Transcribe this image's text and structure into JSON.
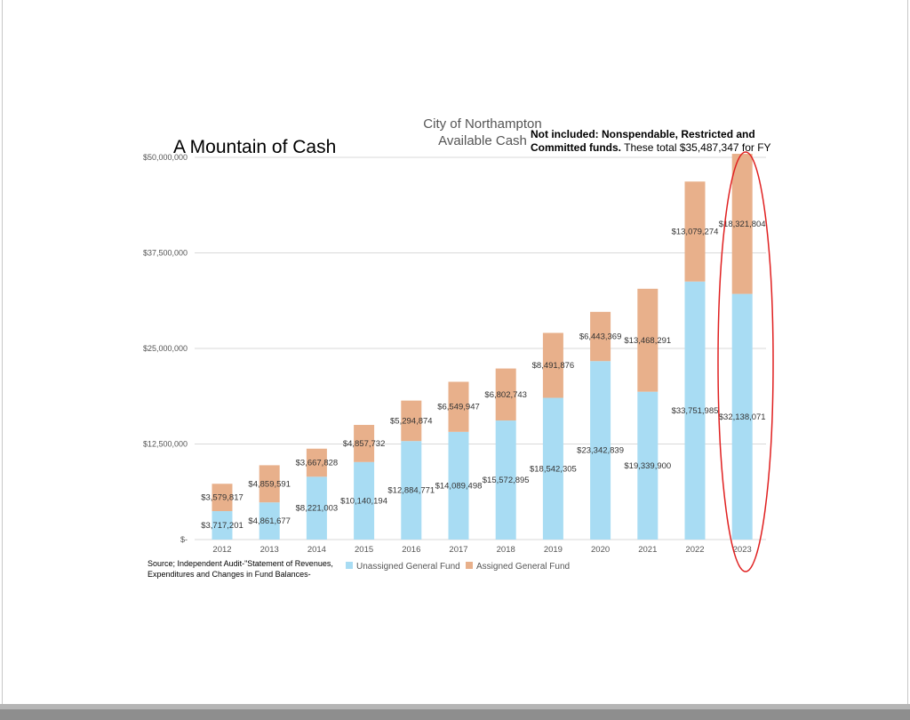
{
  "chart_data": {
    "type": "bar",
    "stacked": true,
    "title": "A Mountain of Cash",
    "subtitle_line1": "City of Northampton",
    "subtitle_line2": "Available Cash",
    "annotation_bold": "Not included: Nonspendable, Restricted and Committed funds.",
    "annotation_rest": " These total $35,487,347 for FY",
    "source_note": "Source; Independent Audit-\"Statement of Revenues, Expenditures and Changes in Fund Balances-",
    "categories": [
      "2012",
      "2013",
      "2014",
      "2015",
      "2016",
      "2017",
      "2018",
      "2019",
      "2020",
      "2021",
      "2022",
      "2023"
    ],
    "series": [
      {
        "name": "Unassigned General Fund",
        "color": "#a8dcf3",
        "values": [
          3717201,
          4861677,
          8221003,
          10140194,
          12884771,
          14089498,
          15572895,
          18542305,
          23342839,
          19339900,
          33751985,
          32138071
        ],
        "labels": [
          "$3,717,201",
          "$4,861,677",
          "$8,221,003",
          "$10,140,194",
          "$12,884,771",
          "$14,089,498",
          "$15,572,895",
          "$18,542,305",
          "$23,342,839",
          "$19,339,900",
          "$33,751,985",
          "$32,138,071"
        ]
      },
      {
        "name": "Assigned General Fund",
        "color": "#e8b08b",
        "values": [
          3579817,
          4859591,
          3667828,
          4857732,
          5294874,
          6549947,
          6802743,
          8491876,
          6443369,
          13468291,
          13079274,
          18321804
        ],
        "labels": [
          "$3,579,817",
          "$4,859,591",
          "$3,667,828",
          "$4,857,732",
          "$5,294,874",
          "$6,549,947",
          "$6,802,743",
          "$8,491,876",
          "$6,443,369",
          "$13,468,291",
          "$13,079,274",
          "$18,321,804"
        ]
      }
    ],
    "yticks": [
      0,
      12500000,
      25000000,
      37500000,
      50000000
    ],
    "ytick_labels": [
      "$-",
      "$12,500,000",
      "$25,000,000",
      "$37,500,000",
      "$50,000,000"
    ],
    "ylim": [
      0,
      50000000
    ],
    "grid": true,
    "legend_position": "bottom",
    "highlight": {
      "category": "2023",
      "shape": "ellipse",
      "color": "#e02020"
    }
  }
}
